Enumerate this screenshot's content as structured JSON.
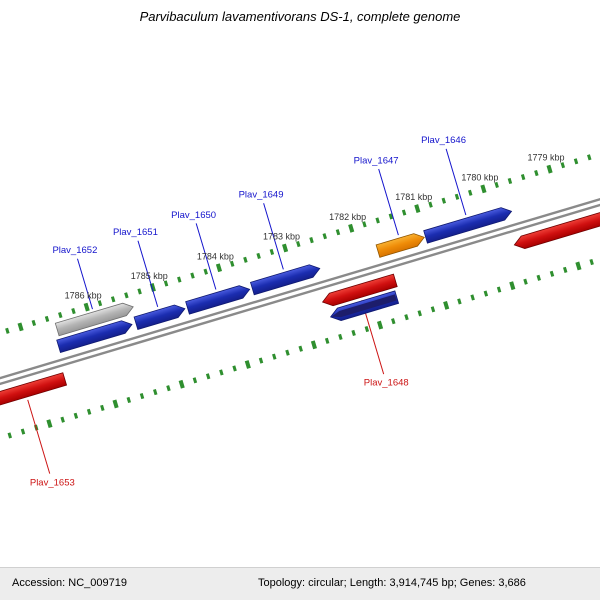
{
  "title": "Parvibaculum lavamentivorans DS-1, complete genome",
  "footer": {
    "accession": "Accession: NC_009719",
    "stats": "Topology: circular; Length: 3,914,745 bp; Genes: 3,686"
  },
  "chart_data": {
    "type": "genome-map",
    "organism": "Parvibaculum lavamentivorans DS-1",
    "visible_range_kbp": [
      1778.4,
      1787.8
    ],
    "tick_interval_kbp": 0.2,
    "colors": {
      "blue": "#1b2db0",
      "orange": "#ef8c08",
      "red": "#d01010",
      "gray": "#b4b4b4",
      "navy": "#1d1d6b",
      "tick": "#2f8f2f",
      "backbone": "#8a8a8a",
      "label_blue": "#1414cc",
      "label_red": "#cc1414"
    },
    "tick_labels": [
      {
        "kbp": 1779,
        "text": "1779 kbp"
      },
      {
        "kbp": 1780,
        "text": "1780 kbp"
      },
      {
        "kbp": 1781,
        "text": "1781 kbp"
      },
      {
        "kbp": 1782,
        "text": "1782 kbp"
      },
      {
        "kbp": 1783,
        "text": "1783 kbp"
      },
      {
        "kbp": 1784,
        "text": "1784 kbp"
      },
      {
        "kbp": 1785,
        "text": "1785 kbp"
      },
      {
        "kbp": 1786,
        "text": "1786 kbp"
      }
    ],
    "genes": [
      {
        "name": "Plav_1646",
        "start_kbp": 1779.7,
        "end_kbp": 1781.0,
        "ring": "forward",
        "direction": "right",
        "color": "blue",
        "label_color": "blue"
      },
      {
        "name": "Plav_1647",
        "start_kbp": 1781.02,
        "end_kbp": 1781.72,
        "ring": "forward",
        "direction": "right",
        "color": "orange",
        "label_color": "blue"
      },
      {
        "name": "Plav_1648",
        "start_kbp": 1781.6,
        "end_kbp": 1782.7,
        "ring": "reverse",
        "direction": "left",
        "color": "red",
        "label_color": "red"
      },
      {
        "name": "Plav_1649",
        "start_kbp": 1782.6,
        "end_kbp": 1783.62,
        "ring": "forward",
        "direction": "right",
        "color": "blue",
        "label_color": "blue"
      },
      {
        "name": "Plav_1650",
        "start_kbp": 1783.66,
        "end_kbp": 1784.6,
        "ring": "forward",
        "direction": "right",
        "color": "blue",
        "label_color": "blue"
      },
      {
        "name": "Plav_1651",
        "start_kbp": 1784.64,
        "end_kbp": 1785.38,
        "ring": "forward",
        "direction": "right",
        "color": "blue",
        "label_color": "blue"
      },
      {
        "name": "Plav_1652",
        "start_kbp": 1785.35,
        "end_kbp": 1786.5,
        "ring": "outer",
        "direction": "right",
        "color": "gray",
        "label_color": "blue"
      },
      {
        "name": "Plav_1653",
        "start_kbp": 1786.6,
        "end_kbp": 1787.8,
        "ring": "reverse",
        "direction": "left",
        "color": "red",
        "label_color": "red"
      },
      {
        "name": "",
        "start_kbp": 1785.44,
        "end_kbp": 1786.55,
        "ring": "forward",
        "direction": "right",
        "color": "blue"
      },
      {
        "name": "",
        "start_kbp": 1778.4,
        "end_kbp": 1779.8,
        "ring": "reverse",
        "direction": "left",
        "color": "red"
      },
      {
        "name": "",
        "start_kbp": 1781.65,
        "end_kbp": 1782.65,
        "ring": "inner",
        "direction": "left",
        "color": "blue",
        "overlay": "navy"
      }
    ]
  }
}
